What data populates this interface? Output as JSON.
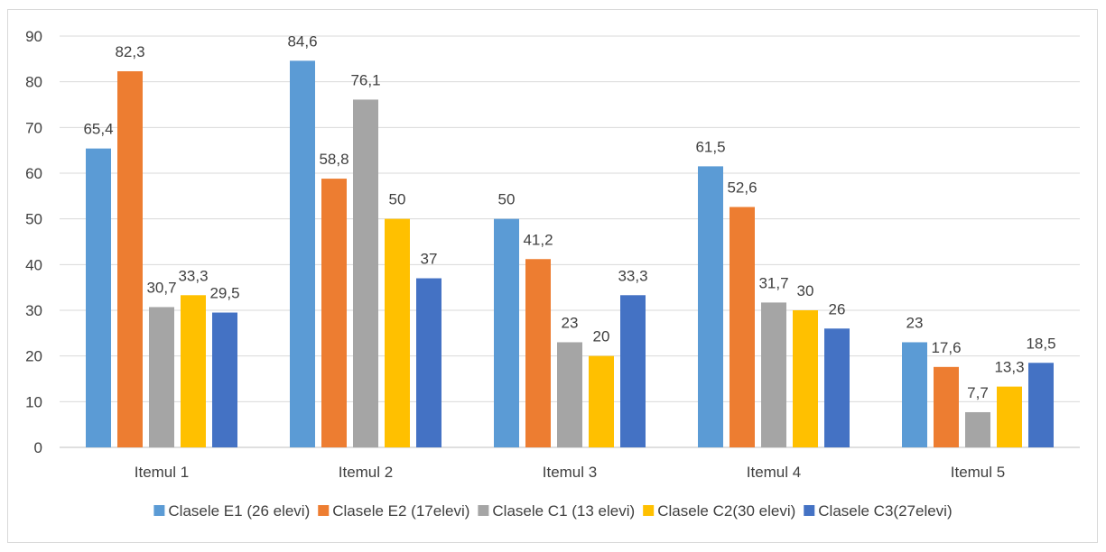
{
  "chart_data": {
    "type": "bar",
    "categories": [
      "Itemul 1",
      "Itemul 2",
      "Itemul 3",
      "Itemul 4",
      "Itemul 5"
    ],
    "series": [
      {
        "name": "Clasele E1 (26 elevi)",
        "color": "#5b9bd5",
        "values": [
          65.4,
          84.6,
          50,
          61.5,
          23
        ],
        "labels": [
          "65,4",
          "84,6",
          "50",
          "61,5",
          "23"
        ]
      },
      {
        "name": "Clasele E2 (17elevi)",
        "color": "#ed7d31",
        "values": [
          82.3,
          58.8,
          41.2,
          52.6,
          17.6
        ],
        "labels": [
          "82,3",
          "58,8",
          "41,2",
          "52,6",
          "17,6"
        ]
      },
      {
        "name": "Clasele C1 (13 elevi)",
        "color": "#a5a5a5",
        "values": [
          30.7,
          76.1,
          23,
          31.7,
          7.7
        ],
        "labels": [
          "30,7",
          "76,1",
          "23",
          "31,7",
          "7,7"
        ]
      },
      {
        "name": "Clasele C2(30 elevi)",
        "color": "#ffc000",
        "values": [
          33.3,
          50,
          20,
          30,
          13.3
        ],
        "labels": [
          "33,3",
          "50",
          "20",
          "30",
          "13,3"
        ]
      },
      {
        "name": "Clasele C3(27elevi)",
        "color": "#4472c4",
        "values": [
          29.5,
          37,
          33.3,
          26,
          18.5
        ],
        "labels": [
          "29,5",
          "37",
          "33,3",
          "26",
          "18,5"
        ]
      }
    ],
    "title": "",
    "xlabel": "",
    "ylabel": "",
    "ylim": [
      0,
      90
    ],
    "yticks": [
      "0",
      "10",
      "20",
      "30",
      "40",
      "50",
      "60",
      "70",
      "80",
      "90"
    ],
    "grid": true,
    "legend_position": "bottom"
  }
}
